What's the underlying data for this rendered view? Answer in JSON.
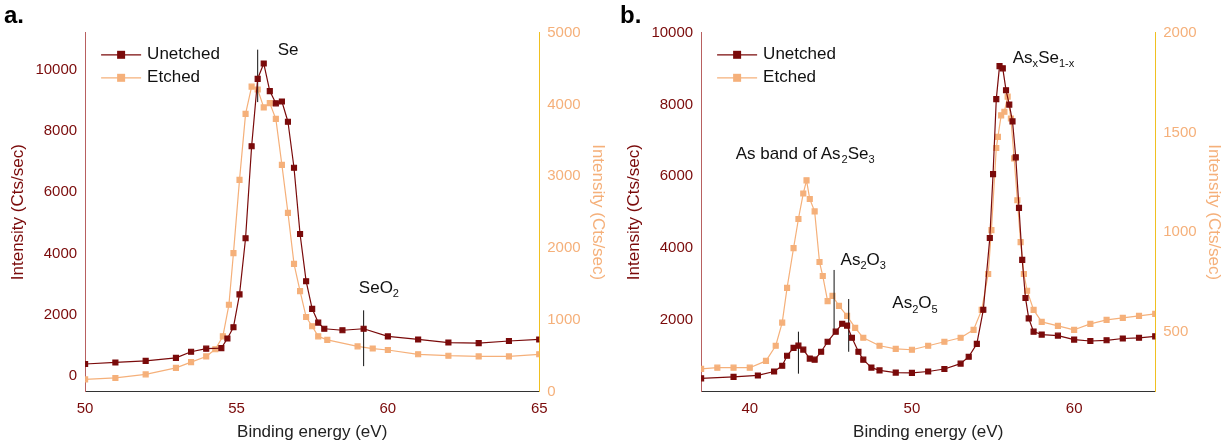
{
  "chart_data": [
    {
      "type": "line",
      "title": "a.",
      "xlabel": "Binding energy (eV)",
      "ylabel": "Intensity (Cts/sec)",
      "y2label": "Intensity (Cts/sec)",
      "xlim": [
        50,
        65
      ],
      "xticks": [
        50,
        55,
        60,
        65
      ],
      "ylim": [
        -500,
        11200
      ],
      "yticks": [
        0,
        2000,
        4000,
        6000,
        8000,
        10000
      ],
      "y2lim": [
        0,
        5000
      ],
      "y2ticks": [
        0,
        1000,
        2000,
        3000,
        4000,
        5000
      ],
      "marker": "square",
      "line_style": "solid",
      "grid": false,
      "legend": "top left",
      "annotations": [
        "Se",
        "SeO$_{2}$"
      ],
      "series": [
        {
          "name": "Unetched",
          "color": "#7a0a0a",
          "x": [
            50,
            51,
            52,
            53,
            53.5,
            54,
            54.5,
            54.7,
            54.9,
            55.1,
            55.3,
            55.5,
            55.7,
            55.9,
            56.1,
            56.3,
            56.5,
            56.7,
            56.9,
            57.1,
            57.3,
            57.5,
            57.7,
            57.9,
            58.5,
            59.2,
            60,
            61,
            62,
            63,
            64,
            65
          ],
          "values": [
            400,
            450,
            500,
            600,
            800,
            900,
            920,
            1230,
            1600,
            2670,
            4500,
            7500,
            9700,
            10200,
            9300,
            8900,
            8960,
            8300,
            6800,
            4640,
            3100,
            2200,
            1750,
            1550,
            1500,
            1550,
            1300,
            1200,
            1100,
            1080,
            1150,
            1200
          ]
        },
        {
          "name": "Etched",
          "color": "#f5b07a",
          "axis": "y2",
          "x": [
            50,
            51,
            52,
            53,
            53.5,
            54,
            54.3,
            54.55,
            54.75,
            54.9,
            55.1,
            55.3,
            55.5,
            55.7,
            55.9,
            56.1,
            56.3,
            56.5,
            56.7,
            56.9,
            57.1,
            57.3,
            57.5,
            57.7,
            58,
            59,
            59.5,
            60,
            61,
            62,
            63,
            64,
            65
          ],
          "values": [
            170,
            190,
            240,
            330,
            410,
            490,
            590,
            770,
            1210,
            1930,
            2950,
            3870,
            4250,
            4210,
            3960,
            4020,
            3800,
            3160,
            2490,
            1780,
            1400,
            1040,
            910,
            770,
            720,
            630,
            600,
            580,
            520,
            500,
            490,
            490,
            520
          ]
        },
        {
          "color": "#111111",
          "marker": "none",
          "x": [
            55.7,
            55.7
          ],
          "values": [
            8940,
            10650
          ]
        },
        {
          "color": "#111111",
          "marker": "none",
          "x": [
            59.2,
            59.2
          ],
          "values": [
            330,
            2150
          ]
        }
      ]
    },
    {
      "type": "line",
      "title": "b.",
      "xlabel": "Binding energy (eV)",
      "ylabel": "Intensity (Cts/sec)",
      "y2label": "Intensity (Cts/sec)",
      "xlim": [
        37,
        65
      ],
      "xticks": [
        40,
        50,
        60
      ],
      "ylim": [
        0,
        10000
      ],
      "yticks": [
        2000,
        4000,
        6000,
        8000,
        10000
      ],
      "y2lim": [
        200,
        2000
      ],
      "y2ticks": [
        500,
        1000,
        1500,
        2000
      ],
      "marker": "square",
      "line_style": "solid",
      "grid": false,
      "legend": "top left",
      "annotations": [
        "As band of As$_{2}$Se$_{3}$",
        "As$_{2}$O$_{3}$",
        "As$_{2}$O$_{5}$",
        "As$_{x}$Se$_{1-x}$"
      ],
      "series": [
        {
          "name": "Unetched",
          "color": "#7a0a0a",
          "x": [
            37,
            39,
            40.5,
            41.5,
            42,
            42.3,
            42.7,
            43,
            43.3,
            43.7,
            44,
            44.4,
            44.8,
            45.3,
            45.7,
            46,
            46.3,
            46.7,
            47,
            47.5,
            48,
            49,
            50,
            51,
            52,
            53,
            53.5,
            54,
            54.4,
            54.8,
            55,
            55.2,
            55.4,
            55.6,
            55.8,
            56,
            56.2,
            56.4,
            56.6,
            56.8,
            57,
            57.2,
            57.5,
            58,
            59,
            60,
            61,
            62,
            63,
            64,
            65
          ],
          "values": [
            370,
            410,
            450,
            560,
            720,
            1000,
            1220,
            1280,
            1170,
            920,
            890,
            1110,
            1390,
            1670,
            1890,
            1840,
            1500,
            1110,
            890,
            670,
            590,
            530,
            520,
            560,
            630,
            780,
            970,
            1330,
            2280,
            4280,
            6060,
            8150,
            9070,
            9010,
            8400,
            8000,
            7530,
            6530,
            5120,
            3670,
            2610,
            2040,
            1670,
            1590,
            1560,
            1450,
            1410,
            1430,
            1480,
            1500,
            1540
          ]
        },
        {
          "name": "Etched",
          "color": "#f5b07a",
          "axis": "y2",
          "x": [
            37,
            38,
            39,
            40,
            41,
            41.6,
            42,
            42.3,
            42.7,
            43,
            43.3,
            43.5,
            43.7,
            44,
            44.3,
            44.5,
            44.8,
            45.1,
            45.5,
            46,
            46.5,
            47,
            48,
            49,
            50,
            51,
            52,
            53,
            53.8,
            54.3,
            54.7,
            54.9,
            55.2,
            55.3,
            55.5,
            55.7,
            55.9,
            56.1,
            56.3,
            56.5,
            56.7,
            56.9,
            57.1,
            57.5,
            58,
            59,
            60,
            61,
            62,
            63,
            64,
            65
          ],
          "values": [
            314,
            320,
            320,
            320,
            354,
            430,
            546,
            720,
            920,
            1066,
            1194,
            1260,
            1166,
            1104,
            850,
            780,
            654,
            680,
            630,
            580,
            520,
            470,
            430,
            414,
            410,
            430,
            450,
            470,
            510,
            610,
            790,
            1010,
            1422,
            1478,
            1586,
            1604,
            1680,
            1570,
            1370,
            1160,
            950,
            790,
            706,
            610,
            550,
            530,
            510,
            540,
            560,
            570,
            580,
            590
          ]
        },
        {
          "color": "#111111",
          "marker": "none",
          "x": [
            43,
            43
          ],
          "values": [
            500,
            1670
          ]
        },
        {
          "color": "#111111",
          "marker": "none",
          "x": [
            45.2,
            45.2
          ],
          "values": [
            1640,
            3390
          ]
        },
        {
          "color": "#111111",
          "marker": "none",
          "x": [
            46.1,
            46.1
          ],
          "values": [
            1110,
            2580
          ]
        }
      ]
    }
  ]
}
